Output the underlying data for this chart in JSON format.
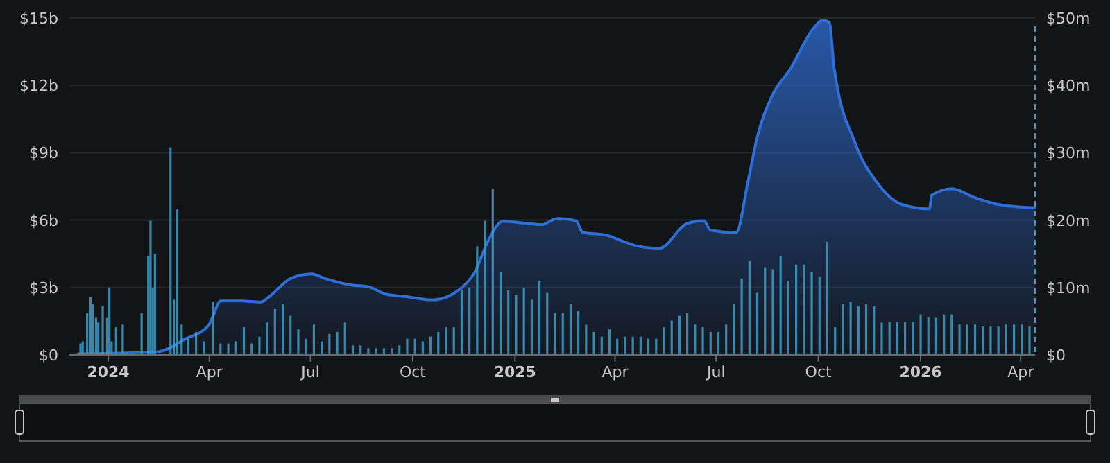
{
  "chart_data": {
    "type": "area",
    "xlim": [
      "2023-11-27",
      "2026-04-14"
    ],
    "xticks": [
      {
        "value": "2024-01-01",
        "label": "2024"
      },
      {
        "value": "2024-04-01",
        "label": "Apr"
      },
      {
        "value": "2024-07-01",
        "label": "Jul"
      },
      {
        "value": "2024-10-01",
        "label": "Oct"
      },
      {
        "value": "2025-01-01",
        "label": "2025"
      },
      {
        "value": "2025-04-01",
        "label": "Apr"
      },
      {
        "value": "2025-07-01",
        "label": "Jul"
      },
      {
        "value": "2025-10-01",
        "label": "Oct"
      },
      {
        "value": "2026-01-01",
        "label": "2026"
      },
      {
        "value": "2026-04-01",
        "label": "Apr"
      }
    ],
    "ylim": [
      0,
      15
    ],
    "yticks": [
      {
        "value": 0,
        "label": "$0"
      },
      {
        "value": 3,
        "label": "$3b"
      },
      {
        "value": 6,
        "label": "$6b"
      },
      {
        "value": 9,
        "label": "$9b"
      },
      {
        "value": 12,
        "label": "$12b"
      },
      {
        "value": 15,
        "label": "$15b"
      }
    ],
    "y2lim": [
      0,
      50
    ],
    "y2ticks": [
      {
        "value": 0,
        "label": "$0"
      },
      {
        "value": 10,
        "label": "$10m"
      },
      {
        "value": 20,
        "label": "$20m"
      },
      {
        "value": 30,
        "label": "$30m"
      },
      {
        "value": 40,
        "label": "$40m"
      },
      {
        "value": 50,
        "label": "$50m"
      }
    ],
    "grid": "y",
    "series": [
      {
        "type": "bar",
        "axis": "y2",
        "color": "#3f9cc4",
        "x": [
          "2023-12-07",
          "2023-12-09",
          "2023-12-13",
          "2023-12-16",
          "2023-12-18",
          "2023-12-21",
          "2023-12-23",
          "2023-12-27",
          "2023-12-31",
          "2024-01-02",
          "2024-01-04",
          "2024-01-08",
          "2024-01-14",
          "2024-01-31",
          "2024-02-06",
          "2024-02-08",
          "2024-02-10",
          "2024-02-12",
          "2024-02-26",
          "2024-02-29",
          "2024-03-03",
          "2024-03-07",
          "2024-03-13",
          "2024-03-20",
          "2024-03-27",
          "2024-04-04",
          "2024-04-11",
          "2024-04-18",
          "2024-04-25",
          "2024-05-02",
          "2024-05-09",
          "2024-05-16",
          "2024-05-23",
          "2024-05-30",
          "2024-06-06",
          "2024-06-13",
          "2024-06-20",
          "2024-06-27",
          "2024-07-04",
          "2024-07-11",
          "2024-07-18",
          "2024-07-25",
          "2024-08-01",
          "2024-08-08",
          "2024-08-15",
          "2024-08-22",
          "2024-08-29",
          "2024-09-05",
          "2024-09-12",
          "2024-09-19",
          "2024-09-26",
          "2024-10-03",
          "2024-10-10",
          "2024-10-17",
          "2024-10-24",
          "2024-10-31",
          "2024-11-07",
          "2024-11-14",
          "2024-11-21",
          "2024-11-28",
          "2024-12-05",
          "2024-12-12",
          "2024-12-19",
          "2024-12-26",
          "2025-01-02",
          "2025-01-09",
          "2025-01-16",
          "2025-01-23",
          "2025-01-30",
          "2025-02-06",
          "2025-02-13",
          "2025-02-20",
          "2025-02-27",
          "2025-03-06",
          "2025-03-13",
          "2025-03-20",
          "2025-03-27",
          "2025-04-03",
          "2025-04-10",
          "2025-04-17",
          "2025-04-24",
          "2025-05-01",
          "2025-05-08",
          "2025-05-15",
          "2025-05-22",
          "2025-05-29",
          "2025-06-05",
          "2025-06-12",
          "2025-06-19",
          "2025-06-26",
          "2025-07-03",
          "2025-07-10",
          "2025-07-17",
          "2025-07-24",
          "2025-07-31",
          "2025-08-07",
          "2025-08-14",
          "2025-08-21",
          "2025-08-28",
          "2025-09-04",
          "2025-09-11",
          "2025-09-18",
          "2025-09-25",
          "2025-10-02",
          "2025-10-09",
          "2025-10-16",
          "2025-10-23",
          "2025-10-30",
          "2025-11-06",
          "2025-11-13",
          "2025-11-20",
          "2025-11-27",
          "2025-12-04",
          "2025-12-11",
          "2025-12-18",
          "2025-12-25",
          "2026-01-01",
          "2026-01-08",
          "2026-01-15",
          "2026-01-22",
          "2026-01-29",
          "2026-02-05",
          "2026-02-12",
          "2026-02-19",
          "2026-02-26",
          "2026-03-05",
          "2026-03-12",
          "2026-03-19",
          "2026-03-26",
          "2026-04-02",
          "2026-04-09"
        ],
        "values": [
          1.7,
          2,
          6.2,
          8.6,
          7.5,
          5.5,
          4.8,
          7.2,
          5.5,
          10,
          2,
          4.1,
          4.5,
          6.2,
          14.7,
          19.9,
          10,
          15,
          30.8,
          8.2,
          21.6,
          4.5,
          2.4,
          3.4,
          2,
          7.9,
          1.7,
          1.7,
          2,
          4.1,
          1.7,
          2.7,
          4.8,
          6.8,
          7.5,
          5.8,
          3.8,
          2.4,
          4.5,
          2,
          3.1,
          3.4,
          4.8,
          1.4,
          1.4,
          1,
          1,
          1,
          1,
          1.4,
          2.4,
          2.4,
          2,
          2.7,
          3.4,
          4.1,
          4.1,
          9.6,
          10,
          16.1,
          19.9,
          24.7,
          12.3,
          9.6,
          8.9,
          10,
          8.2,
          11,
          9.2,
          6.2,
          6.2,
          7.5,
          6.5,
          4.5,
          3.4,
          2.7,
          3.8,
          2.4,
          2.7,
          2.7,
          2.7,
          2.4,
          2.4,
          4.1,
          5.1,
          5.8,
          6.2,
          4.5,
          4.1,
          3.4,
          3.4,
          4.5,
          7.5,
          11.3,
          14,
          9.2,
          13,
          12.7,
          14.7,
          11,
          13.4,
          13.4,
          12.3,
          11.6,
          16.8,
          4.1,
          7.5,
          7.9,
          7.2,
          7.5,
          7.2,
          4.8,
          4.9,
          4.9,
          4.9,
          4.9,
          6,
          5.6,
          5.5,
          6,
          6,
          4.5,
          4.5,
          4.5,
          4.2,
          4.2,
          4.2,
          4.5,
          4.5,
          4.5,
          4.2
        ]
      },
      {
        "color": "#2f6fd8",
        "x": [
          "2023-12-05",
          "2024-01-28",
          "2024-02-16",
          "2024-03-10",
          "2024-03-31",
          "2024-04-04",
          "2024-04-11",
          "2024-04-30",
          "2024-05-17",
          "2024-05-25",
          "2024-06-13",
          "2024-07-02",
          "2024-07-14",
          "2024-08-08",
          "2024-08-21",
          "2024-09-07",
          "2024-09-24",
          "2024-10-19",
          "2024-11-13",
          "2024-11-26",
          "2024-12-08",
          "2024-12-21",
          "2025-01-12",
          "2025-01-25",
          "2025-02-06",
          "2025-02-09",
          "2025-02-25",
          "2025-03-03",
          "2025-03-22",
          "2025-04-21",
          "2025-05-11",
          "2025-06-05",
          "2025-06-20",
          "2025-06-26",
          "2025-07-19",
          "2025-07-30",
          "2025-08-07",
          "2025-08-20",
          "2025-09-06",
          "2025-09-26",
          "2025-10-05",
          "2025-10-11",
          "2025-10-15",
          "2025-11-03",
          "2025-11-24",
          "2025-12-15",
          "2026-01-09",
          "2026-01-11",
          "2026-01-29",
          "2026-02-19",
          "2026-03-12",
          "2026-04-14"
        ],
        "values": [
          0.05,
          0.1,
          0.15,
          0.7,
          1.3,
          1.7,
          2.4,
          2.4,
          2.35,
          2.6,
          3.4,
          3.6,
          3.4,
          3.1,
          3.05,
          2.7,
          2.6,
          2.45,
          2.95,
          3.7,
          5.1,
          5.95,
          5.85,
          5.8,
          6.05,
          6.07,
          5.97,
          5.45,
          5.35,
          4.85,
          4.75,
          5.85,
          5.97,
          5.55,
          5.45,
          7.8,
          9.7,
          11.5,
          12.75,
          14.5,
          14.9,
          14.8,
          12.85,
          9.45,
          7.6,
          6.7,
          6.5,
          7.1,
          7.4,
          7.0,
          6.7,
          6.55
        ]
      }
    ]
  }
}
